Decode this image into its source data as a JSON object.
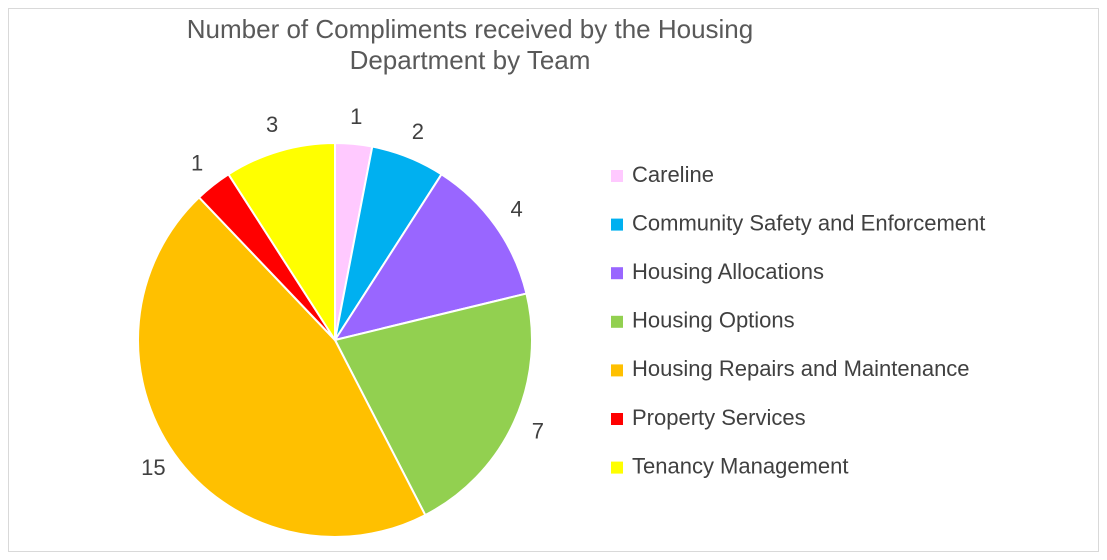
{
  "chart_data": {
    "type": "pie",
    "title": "Number of Compliments received by the Housing Department by Team",
    "categories": [
      "Careline",
      "Community Safety and Enforcement",
      "Housing Allocations",
      "Housing Options",
      "Housing Repairs and Maintenance",
      "Property Services",
      "Tenancy Management"
    ],
    "values": [
      1,
      2,
      4,
      7,
      15,
      1,
      3
    ],
    "colors": [
      "#FFC9FF",
      "#00B0F0",
      "#9966FF",
      "#92D050",
      "#FFC000",
      "#FF0000",
      "#FFFF00"
    ],
    "legend": "right"
  }
}
